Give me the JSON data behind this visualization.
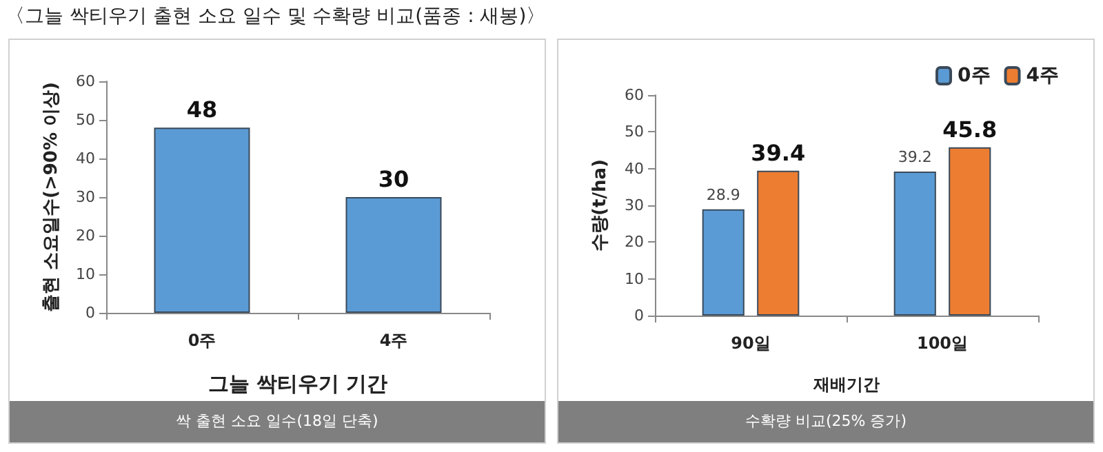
{
  "chart_data": [
    {
      "type": "bar",
      "title": "〈그늘 싹티우기 출현 소요 일수 및 수확량 비교(품종 : 새봉)〉",
      "xlabel": "그늘 싹티우기 기간",
      "ylabel": "출현 소요일수(>90% 이상)",
      "categories": [
        "0주",
        "4주"
      ],
      "values": [
        48,
        30
      ],
      "color": "#5b9bd5",
      "ylim": [
        0,
        60
      ],
      "yticks": [
        0,
        10,
        20,
        30,
        40,
        50,
        60
      ],
      "grid": false,
      "legend": false,
      "data_labels": true,
      "annotations": [
        "싹 출현 소요 일수(18일 단축)"
      ]
    },
    {
      "type": "bar",
      "xlabel": "재배기간",
      "ylabel": "수량(t/ha)",
      "categories": [
        "90일",
        "100일"
      ],
      "series": [
        {
          "name": "0주",
          "color": "#5b9bd5",
          "values": [
            28.9,
            39.2
          ]
        },
        {
          "name": "4주",
          "color": "#ed7d31",
          "values": [
            39.4,
            45.8
          ]
        }
      ],
      "ylim": [
        0,
        60
      ],
      "yticks": [
        0,
        10,
        20,
        30,
        40,
        50,
        60
      ],
      "grid": false,
      "legend": "top right",
      "data_labels": true,
      "annotations": [
        "수확량 비교(25% 증가)"
      ]
    }
  ]
}
